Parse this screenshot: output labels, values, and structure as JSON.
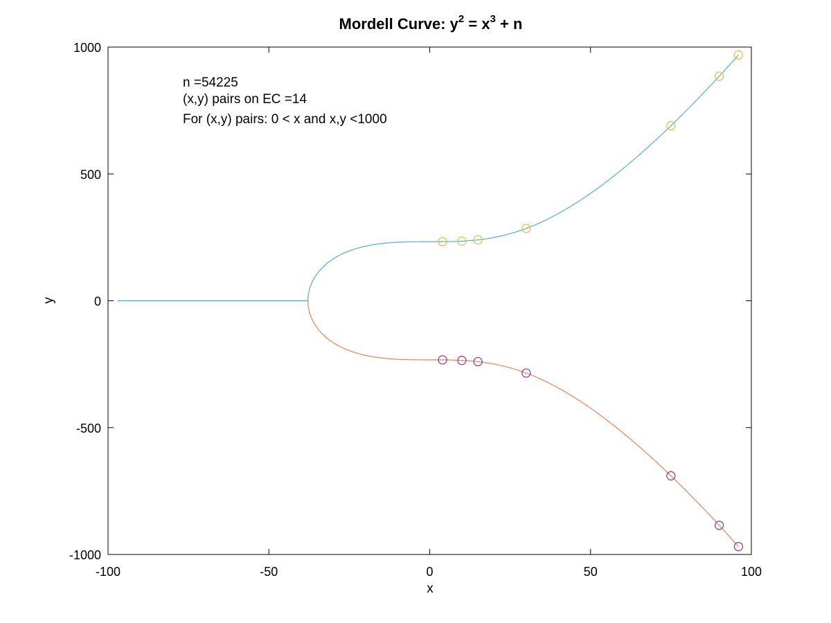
{
  "chart_data": {
    "type": "line",
    "title": {
      "prefix": "Mordell Curve:  y",
      "sup1": "2",
      "middle": " = x",
      "sup2": "3",
      "suffix": " + n"
    },
    "xlabel": "x",
    "ylabel": "y",
    "xlim": [
      -100,
      100
    ],
    "ylim": [
      -1000,
      1000
    ],
    "xticks": [
      -100,
      -50,
      0,
      50,
      100
    ],
    "yticks": [
      -1000,
      -500,
      0,
      500,
      1000
    ],
    "grid": false,
    "n": 54225,
    "annotations": [
      "n =54225",
      "(x,y) pairs on EC =14",
      "For (x,y) pairs: 0 < x and x,y <1000"
    ],
    "curve_x_range": [
      -97,
      96
    ],
    "series": [
      {
        "role": "upper-curve",
        "color": "#4daed8",
        "style": "line"
      },
      {
        "role": "lower-curve",
        "color": "#ea8050",
        "style": "line"
      },
      {
        "role": "upper-points",
        "color": "#f2b731",
        "style": "marker",
        "points": [
          [
            4,
            233
          ],
          [
            10,
            235
          ],
          [
            15,
            240
          ],
          [
            30,
            285
          ],
          [
            75,
            690
          ],
          [
            90,
            885
          ],
          [
            96,
            969
          ]
        ]
      },
      {
        "role": "lower-points",
        "color": "#8a2f9f",
        "style": "marker",
        "points": [
          [
            4,
            -233
          ],
          [
            10,
            -235
          ],
          [
            15,
            -240
          ],
          [
            30,
            -285
          ],
          [
            75,
            -690
          ],
          [
            90,
            -885
          ],
          [
            96,
            -969
          ]
        ]
      }
    ]
  }
}
